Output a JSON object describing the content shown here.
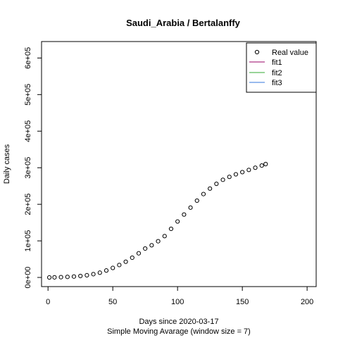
{
  "chart_data": {
    "type": "scatter",
    "title": "Saudi_Arabia / Bertalanffy",
    "xlabel": "Days since 2020-03-17",
    "xlabel2": "Simple Moving Avarage (window size = 7)",
    "ylabel": "Daily cases",
    "xlim": [
      -5,
      207
    ],
    "ylim": [
      -25000,
      645000
    ],
    "xticks": [
      0,
      50,
      100,
      150,
      200
    ],
    "yticks": [
      0,
      100000,
      200000,
      300000,
      400000,
      500000,
      600000
    ],
    "ytick_labels": [
      "0e+00",
      "1e+05",
      "2e+05",
      "3e+05",
      "4e+05",
      "5e+05",
      "6e+05"
    ],
    "grid": false,
    "legend_position": "top-right",
    "legend": [
      {
        "label": "Real value",
        "kind": "point",
        "color": "#000000"
      },
      {
        "label": "fit1",
        "kind": "line",
        "color": "#990066"
      },
      {
        "label": "fit2",
        "kind": "line",
        "color": "#33aa33"
      },
      {
        "label": "fit3",
        "kind": "line",
        "color": "#3377dd"
      }
    ],
    "series": [
      {
        "name": "Real value",
        "x": [
          1,
          5,
          10,
          15,
          20,
          25,
          30,
          35,
          40,
          45,
          50,
          55,
          60,
          65,
          70,
          75,
          80,
          85,
          90,
          95,
          100,
          105,
          110,
          115,
          120,
          125,
          130,
          135,
          140,
          145,
          150,
          155,
          160,
          165,
          168
        ],
        "y": [
          0,
          300,
          800,
          1500,
          2500,
          4000,
          6000,
          9000,
          13000,
          19000,
          26000,
          34000,
          43000,
          54000,
          66000,
          79000,
          88000,
          99000,
          113000,
          133000,
          153000,
          172000,
          191000,
          210000,
          228000,
          243000,
          256000,
          267000,
          275000,
          282000,
          288000,
          294000,
          300000,
          306000,
          310000
        ]
      }
    ]
  }
}
